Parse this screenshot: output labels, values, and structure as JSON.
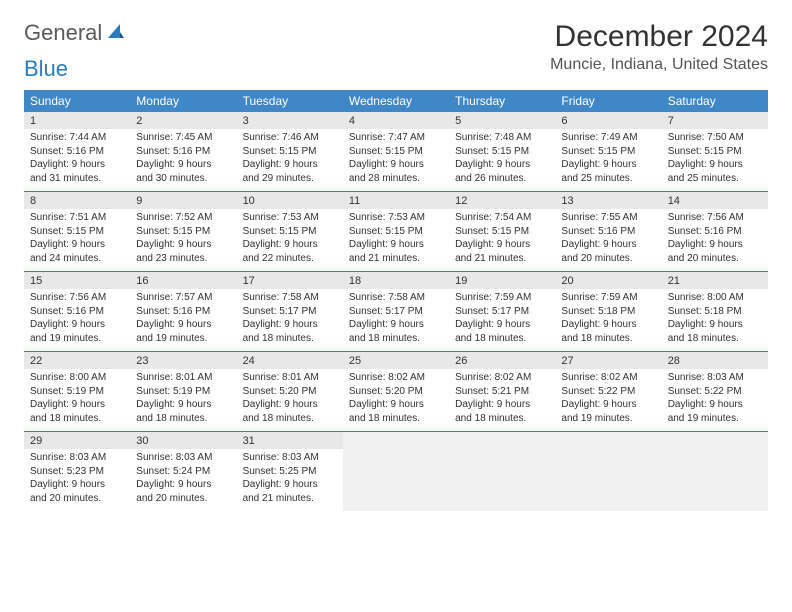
{
  "logo": {
    "part1": "General",
    "part2": "Blue"
  },
  "title": "December 2024",
  "location": "Muncie, Indiana, United States",
  "colors": {
    "header_bg": "#3f87c6",
    "header_text": "#ffffff",
    "daynum_bg": "#e8e8e8",
    "week_sep": "#2b7bbf",
    "logo_blue": "#2b7bbf",
    "logo_gray": "#5a5a5a"
  },
  "day_headers": [
    "Sunday",
    "Monday",
    "Tuesday",
    "Wednesday",
    "Thursday",
    "Friday",
    "Saturday"
  ],
  "weeks": [
    [
      {
        "num": "1",
        "sunrise": "Sunrise: 7:44 AM",
        "sunset": "Sunset: 5:16 PM",
        "daylight": "Daylight: 9 hours and 31 minutes."
      },
      {
        "num": "2",
        "sunrise": "Sunrise: 7:45 AM",
        "sunset": "Sunset: 5:16 PM",
        "daylight": "Daylight: 9 hours and 30 minutes."
      },
      {
        "num": "3",
        "sunrise": "Sunrise: 7:46 AM",
        "sunset": "Sunset: 5:15 PM",
        "daylight": "Daylight: 9 hours and 29 minutes."
      },
      {
        "num": "4",
        "sunrise": "Sunrise: 7:47 AM",
        "sunset": "Sunset: 5:15 PM",
        "daylight": "Daylight: 9 hours and 28 minutes."
      },
      {
        "num": "5",
        "sunrise": "Sunrise: 7:48 AM",
        "sunset": "Sunset: 5:15 PM",
        "daylight": "Daylight: 9 hours and 26 minutes."
      },
      {
        "num": "6",
        "sunrise": "Sunrise: 7:49 AM",
        "sunset": "Sunset: 5:15 PM",
        "daylight": "Daylight: 9 hours and 25 minutes."
      },
      {
        "num": "7",
        "sunrise": "Sunrise: 7:50 AM",
        "sunset": "Sunset: 5:15 PM",
        "daylight": "Daylight: 9 hours and 25 minutes."
      }
    ],
    [
      {
        "num": "8",
        "sunrise": "Sunrise: 7:51 AM",
        "sunset": "Sunset: 5:15 PM",
        "daylight": "Daylight: 9 hours and 24 minutes."
      },
      {
        "num": "9",
        "sunrise": "Sunrise: 7:52 AM",
        "sunset": "Sunset: 5:15 PM",
        "daylight": "Daylight: 9 hours and 23 minutes."
      },
      {
        "num": "10",
        "sunrise": "Sunrise: 7:53 AM",
        "sunset": "Sunset: 5:15 PM",
        "daylight": "Daylight: 9 hours and 22 minutes."
      },
      {
        "num": "11",
        "sunrise": "Sunrise: 7:53 AM",
        "sunset": "Sunset: 5:15 PM",
        "daylight": "Daylight: 9 hours and 21 minutes."
      },
      {
        "num": "12",
        "sunrise": "Sunrise: 7:54 AM",
        "sunset": "Sunset: 5:15 PM",
        "daylight": "Daylight: 9 hours and 21 minutes."
      },
      {
        "num": "13",
        "sunrise": "Sunrise: 7:55 AM",
        "sunset": "Sunset: 5:16 PM",
        "daylight": "Daylight: 9 hours and 20 minutes."
      },
      {
        "num": "14",
        "sunrise": "Sunrise: 7:56 AM",
        "sunset": "Sunset: 5:16 PM",
        "daylight": "Daylight: 9 hours and 20 minutes."
      }
    ],
    [
      {
        "num": "15",
        "sunrise": "Sunrise: 7:56 AM",
        "sunset": "Sunset: 5:16 PM",
        "daylight": "Daylight: 9 hours and 19 minutes."
      },
      {
        "num": "16",
        "sunrise": "Sunrise: 7:57 AM",
        "sunset": "Sunset: 5:16 PM",
        "daylight": "Daylight: 9 hours and 19 minutes."
      },
      {
        "num": "17",
        "sunrise": "Sunrise: 7:58 AM",
        "sunset": "Sunset: 5:17 PM",
        "daylight": "Daylight: 9 hours and 18 minutes."
      },
      {
        "num": "18",
        "sunrise": "Sunrise: 7:58 AM",
        "sunset": "Sunset: 5:17 PM",
        "daylight": "Daylight: 9 hours and 18 minutes."
      },
      {
        "num": "19",
        "sunrise": "Sunrise: 7:59 AM",
        "sunset": "Sunset: 5:17 PM",
        "daylight": "Daylight: 9 hours and 18 minutes."
      },
      {
        "num": "20",
        "sunrise": "Sunrise: 7:59 AM",
        "sunset": "Sunset: 5:18 PM",
        "daylight": "Daylight: 9 hours and 18 minutes."
      },
      {
        "num": "21",
        "sunrise": "Sunrise: 8:00 AM",
        "sunset": "Sunset: 5:18 PM",
        "daylight": "Daylight: 9 hours and 18 minutes."
      }
    ],
    [
      {
        "num": "22",
        "sunrise": "Sunrise: 8:00 AM",
        "sunset": "Sunset: 5:19 PM",
        "daylight": "Daylight: 9 hours and 18 minutes."
      },
      {
        "num": "23",
        "sunrise": "Sunrise: 8:01 AM",
        "sunset": "Sunset: 5:19 PM",
        "daylight": "Daylight: 9 hours and 18 minutes."
      },
      {
        "num": "24",
        "sunrise": "Sunrise: 8:01 AM",
        "sunset": "Sunset: 5:20 PM",
        "daylight": "Daylight: 9 hours and 18 minutes."
      },
      {
        "num": "25",
        "sunrise": "Sunrise: 8:02 AM",
        "sunset": "Sunset: 5:20 PM",
        "daylight": "Daylight: 9 hours and 18 minutes."
      },
      {
        "num": "26",
        "sunrise": "Sunrise: 8:02 AM",
        "sunset": "Sunset: 5:21 PM",
        "daylight": "Daylight: 9 hours and 18 minutes."
      },
      {
        "num": "27",
        "sunrise": "Sunrise: 8:02 AM",
        "sunset": "Sunset: 5:22 PM",
        "daylight": "Daylight: 9 hours and 19 minutes."
      },
      {
        "num": "28",
        "sunrise": "Sunrise: 8:03 AM",
        "sunset": "Sunset: 5:22 PM",
        "daylight": "Daylight: 9 hours and 19 minutes."
      }
    ],
    [
      {
        "num": "29",
        "sunrise": "Sunrise: 8:03 AM",
        "sunset": "Sunset: 5:23 PM",
        "daylight": "Daylight: 9 hours and 20 minutes."
      },
      {
        "num": "30",
        "sunrise": "Sunrise: 8:03 AM",
        "sunset": "Sunset: 5:24 PM",
        "daylight": "Daylight: 9 hours and 20 minutes."
      },
      {
        "num": "31",
        "sunrise": "Sunrise: 8:03 AM",
        "sunset": "Sunset: 5:25 PM",
        "daylight": "Daylight: 9 hours and 21 minutes."
      },
      null,
      null,
      null,
      null
    ]
  ]
}
